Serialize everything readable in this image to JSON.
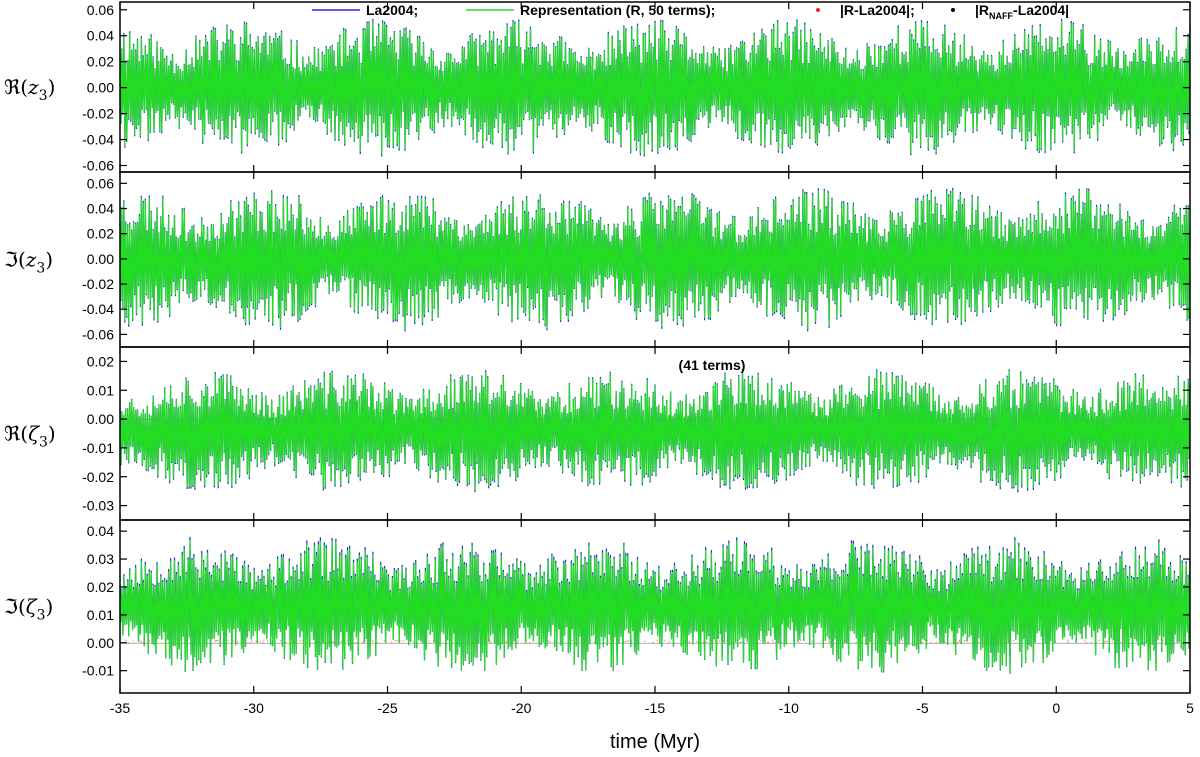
{
  "chart_data": {
    "type": "line",
    "x_title": "time (Myr)",
    "x_range": [
      -35,
      5
    ],
    "x_ticks": [
      "-35",
      "-30",
      "-25",
      "-20",
      "-15",
      "-10",
      "-5",
      "0",
      "5"
    ],
    "legend": [
      {
        "label": "La2004;",
        "color": "#2b2bd6",
        "style": "line"
      },
      {
        "label": "Representation (R, 50 terms);",
        "color": "#22dd22",
        "style": "line"
      },
      {
        "label": "|R-La2004|;",
        "color": "#ee2222",
        "style": "dot"
      },
      {
        "label_main": "|R",
        "label_sub": "NAFF",
        "label_tail": "-La2004|",
        "color": "#000000",
        "style": "dot"
      }
    ],
    "panels": [
      {
        "ylabel_sym": "ℜ",
        "ylabel_var": "z",
        "ylabel_sub": "3",
        "ylim": [
          -0.065,
          0.066
        ],
        "yticks": [
          "0.06",
          "0.04",
          "0.02",
          "0.00",
          "-0.02",
          "-0.04",
          "-0.06"
        ],
        "ytick_values": [
          0.06,
          0.04,
          0.02,
          0.0,
          -0.02,
          -0.04,
          -0.06
        ],
        "signal": {
          "mean": 0.0,
          "amplitude": 0.052,
          "seed": 11
        },
        "annotation": ""
      },
      {
        "ylabel_sym": "ℑ",
        "ylabel_var": "z",
        "ylabel_sub": "3",
        "ylim": [
          -0.07,
          0.069
        ],
        "yticks": [
          "0.06",
          "0.04",
          "0.02",
          "0.00",
          "-0.02",
          "-0.04",
          "-0.06"
        ],
        "ytick_values": [
          0.06,
          0.04,
          0.02,
          0.0,
          -0.02,
          -0.04,
          -0.06
        ],
        "signal": {
          "mean": 0.0,
          "amplitude": 0.056,
          "seed": 23
        },
        "annotation": ""
      },
      {
        "ylabel_sym": "ℜ",
        "ylabel_var": "ζ",
        "ylabel_sub": "3",
        "ylim": [
          -0.035,
          0.025
        ],
        "yticks": [
          "0.02",
          "0.01",
          "0.00",
          "-0.01",
          "-0.02",
          "-0.03"
        ],
        "ytick_values": [
          0.02,
          0.01,
          0.0,
          -0.01,
          -0.02,
          -0.03
        ],
        "signal": {
          "mean": -0.004,
          "amplitude": 0.021,
          "seed": 37
        },
        "annotation": "(41 terms)"
      },
      {
        "ylabel_sym": "ℑ",
        "ylabel_var": "ζ",
        "ylabel_sub": "3",
        "ylim": [
          -0.018,
          0.044
        ],
        "yticks": [
          "0.04",
          "0.03",
          "0.02",
          "0.01",
          "0.00",
          "-0.01"
        ],
        "ytick_values": [
          0.04,
          0.03,
          0.02,
          0.01,
          0.0,
          -0.01
        ],
        "signal": {
          "mean": 0.013,
          "amplitude": 0.024,
          "seed": 53
        },
        "annotation": ""
      }
    ],
    "grid": false,
    "legend_position": "top"
  }
}
